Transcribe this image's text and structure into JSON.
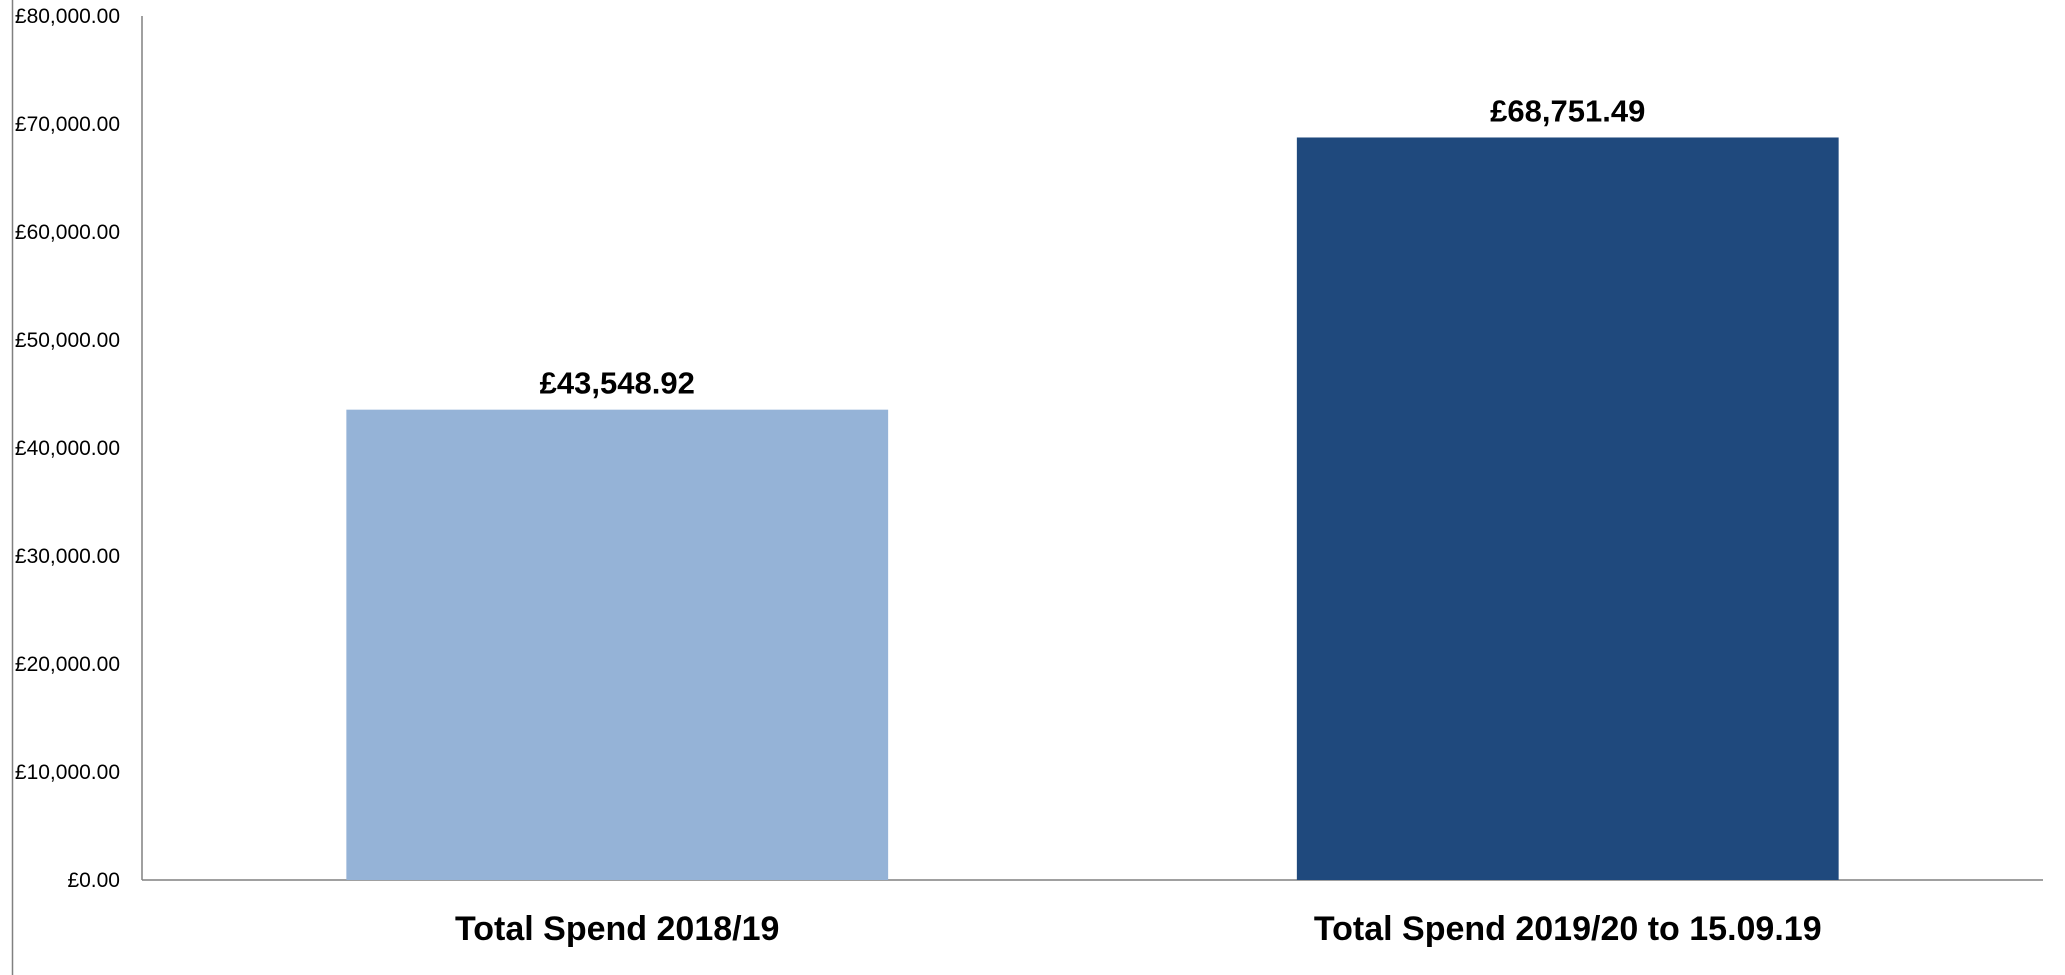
{
  "chart_data": {
    "type": "bar",
    "title": "",
    "xlabel": "",
    "ylabel": "",
    "ylim": [
      0,
      80000
    ],
    "y_ticks": [
      {
        "value": 0,
        "label": "£0.00"
      },
      {
        "value": 10000,
        "label": "£10,000.00"
      },
      {
        "value": 20000,
        "label": "£20,000.00"
      },
      {
        "value": 30000,
        "label": "£30,000.00"
      },
      {
        "value": 40000,
        "label": "£40,000.00"
      },
      {
        "value": 50000,
        "label": "£50,000.00"
      },
      {
        "value": 60000,
        "label": "£60,000.00"
      },
      {
        "value": 70000,
        "label": "£70,000.00"
      },
      {
        "value": 80000,
        "label": "£80,000.00"
      }
    ],
    "categories": [
      "Total Spend 2018/19",
      "Total Spend 2019/20 to 15.09.19"
    ],
    "values": [
      43548.92,
      68751.49
    ],
    "data_labels": [
      "£43,548.92",
      "£68,751.49"
    ],
    "bar_colors": [
      "#95B3D7",
      "#1F497D"
    ],
    "axis_color": "#808080",
    "grid": false,
    "legend": "none"
  }
}
